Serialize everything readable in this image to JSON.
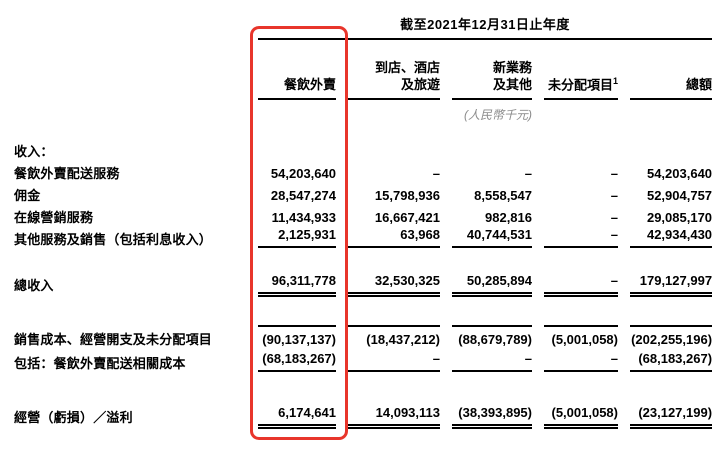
{
  "meta": {
    "highlight_color": "#e8352b"
  },
  "header": {
    "period_title": "截至2021年12月31日止年度",
    "columns": [
      {
        "line1": "餐飲外賣"
      },
      {
        "line1": "到店、酒店",
        "line2": "及旅遊"
      },
      {
        "line1": "新業務",
        "line2": "及其他"
      },
      {
        "line1": "未分配項目",
        "sup": "1"
      },
      {
        "line1": "總額"
      }
    ],
    "unit_note": "(人民幣千元)"
  },
  "body": {
    "section_label": "收入：",
    "revenue_rows": [
      {
        "label": "餐飲外賣配送服務",
        "values": [
          "54,203,640",
          "–",
          "–",
          "–",
          "54,203,640"
        ]
      },
      {
        "label": "佣金",
        "values": [
          "28,547,274",
          "15,798,936",
          "8,558,547",
          "–",
          "52,904,757"
        ]
      },
      {
        "label": "在線營銷服務",
        "values": [
          "11,434,933",
          "16,667,421",
          "982,816",
          "–",
          "29,085,170"
        ]
      },
      {
        "label": "其他服務及銷售（包括利息收入）",
        "values": [
          "2,125,931",
          "63,968",
          "40,744,531",
          "–",
          "42,934,430"
        ]
      }
    ],
    "total_revenue_row": {
      "label": "總收入",
      "values": [
        "96,311,778",
        "32,530,325",
        "50,285,894",
        "–",
        "179,127,997"
      ]
    },
    "cost_row": {
      "label": "銷售成本、經營開支及未分配項目",
      "values": [
        "(90,137,137)",
        "(18,437,212)",
        "(88,679,789)",
        "(5,001,058)",
        "(202,255,196)"
      ]
    },
    "including_row": {
      "label": "包括：餐飲外賣配送相關成本",
      "values": [
        "(68,183,267)",
        "–",
        "–",
        "–",
        "(68,183,267)"
      ]
    },
    "operating_row": {
      "label": "經營（虧損）／溢利",
      "values": [
        "6,174,641",
        "14,093,113",
        "(38,393,895)",
        "(5,001,058)",
        "(23,127,199)"
      ]
    }
  }
}
